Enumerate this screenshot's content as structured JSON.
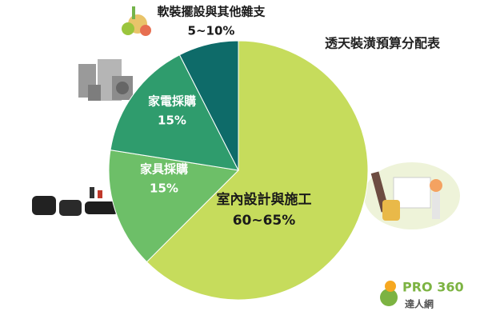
{
  "chart_data": {
    "type": "pie",
    "title": "透天裝潢預算分配表",
    "categories": [
      "室內設計與施工",
      "家具採購",
      "家電採購",
      "軟裝擺設與其他雜支"
    ],
    "values": [
      62.5,
      15,
      15,
      7.5
    ],
    "value_labels": [
      "60~65%",
      "15%",
      "15%",
      "5~10%"
    ],
    "colors": [
      "#c6dc5c",
      "#6dbf68",
      "#2f9c6d",
      "#0e6b69"
    ]
  },
  "logo": {
    "name": "PRO 360",
    "tagline": "達人網"
  }
}
